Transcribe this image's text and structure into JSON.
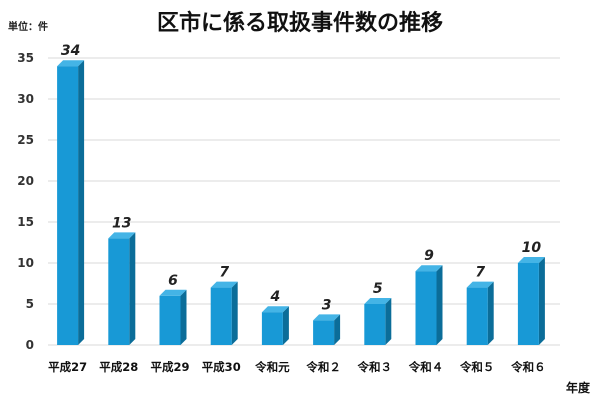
{
  "header": {
    "title": "区市に係る取扱事件数の推移",
    "unit_label": "単位：件"
  },
  "chart_data": {
    "type": "bar",
    "title": "区市に係る取扱事件数の推移",
    "xlabel": "年度",
    "ylabel": "",
    "categories": [
      "平成27",
      "平成28",
      "平成29",
      "平成30",
      "令和元",
      "令和２",
      "令和３",
      "令和４",
      "令和５",
      "令和６"
    ],
    "values": [
      34,
      13,
      6,
      7,
      4,
      3,
      5,
      9,
      7,
      10
    ],
    "ylim": [
      0,
      35
    ],
    "yticks": [
      0,
      5,
      10,
      15,
      20,
      25,
      30,
      35
    ],
    "grid": true,
    "legend": "none",
    "colors": {
      "bar_front": "#1899d6",
      "bar_side": "#0b6d99",
      "bar_top": "#44b4e6",
      "grid": "#d9d9d9"
    }
  }
}
